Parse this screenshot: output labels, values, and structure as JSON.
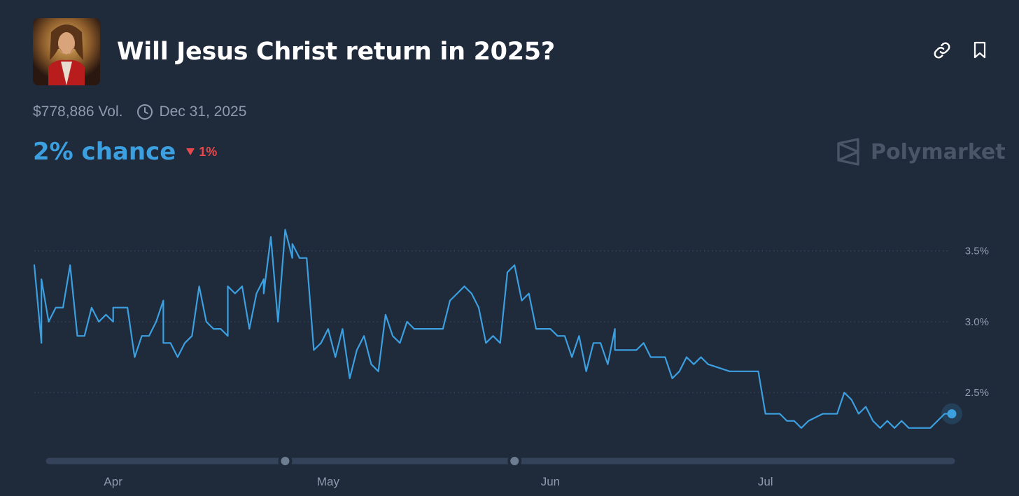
{
  "market": {
    "title": "Will Jesus Christ return in 2025?",
    "volume": "$778,886 Vol.",
    "end_date": "Dec 31, 2025",
    "chance_label": "2% chance",
    "change_label": "1%",
    "brand": "Polymarket"
  },
  "icons": {
    "link": "link-icon",
    "bookmark": "bookmark-icon",
    "clock": "clock-icon",
    "down": "triangle-down-icon",
    "logo": "polymarket-logo-icon"
  },
  "colors": {
    "background": "#1f2a3b",
    "line": "#3b9fe0",
    "chance": "#3b9fe0",
    "change_negative": "#e8494d",
    "muted": "#8e9cb0",
    "grid": "#3b4a5e"
  },
  "chart_data": {
    "type": "line",
    "x_start": "Mar 21",
    "x_end": "Jul 27",
    "xticks": [
      {
        "date": "Apr 1",
        "label": "Apr"
      },
      {
        "date": "May 1",
        "label": "May"
      },
      {
        "date": "Jun 1",
        "label": "Jun"
      },
      {
        "date": "Jul 1",
        "label": "Jul"
      }
    ],
    "yticks": [
      {
        "value": 2.5,
        "label": "2.5%"
      },
      {
        "value": 3.0,
        "label": "3.0%"
      },
      {
        "value": 3.5,
        "label": "3.5%"
      }
    ],
    "ylim": [
      2.15,
      3.8
    ],
    "grid": "horizontal dotted",
    "series": [
      {
        "points": [
          [
            "Mar 21",
            3.4
          ],
          [
            "Mar 22",
            2.85
          ],
          [
            "Mar 22",
            3.3
          ],
          [
            "Mar 23",
            3.0
          ],
          [
            "Mar 24",
            3.1
          ],
          [
            "Mar 25",
            3.1
          ],
          [
            "Mar 26",
            3.4
          ],
          [
            "Mar 27",
            2.9
          ],
          [
            "Mar 28",
            2.9
          ],
          [
            "Mar 29",
            3.1
          ],
          [
            "Mar 30",
            3.0
          ],
          [
            "Mar 31",
            3.05
          ],
          [
            "Apr 1",
            3.0
          ],
          [
            "Apr 1",
            3.1
          ],
          [
            "Apr 3",
            3.1
          ],
          [
            "Apr 4",
            2.75
          ],
          [
            "Apr 5",
            2.9
          ],
          [
            "Apr 6",
            2.9
          ],
          [
            "Apr 7",
            3.0
          ],
          [
            "Apr 8",
            3.15
          ],
          [
            "Apr 8",
            2.85
          ],
          [
            "Apr 9",
            2.85
          ],
          [
            "Apr 10",
            2.75
          ],
          [
            "Apr 11",
            2.85
          ],
          [
            "Apr 12",
            2.9
          ],
          [
            "Apr 13",
            3.25
          ],
          [
            "Apr 14",
            3.0
          ],
          [
            "Apr 15",
            2.95
          ],
          [
            "Apr 16",
            2.95
          ],
          [
            "Apr 17",
            2.9
          ],
          [
            "Apr 17",
            3.25
          ],
          [
            "Apr 18",
            3.2
          ],
          [
            "Apr 19",
            3.25
          ],
          [
            "Apr 20",
            2.95
          ],
          [
            "Apr 21",
            3.2
          ],
          [
            "Apr 22",
            3.3
          ],
          [
            "Apr 22",
            3.2
          ],
          [
            "Apr 23",
            3.6
          ],
          [
            "Apr 24",
            3.0
          ],
          [
            "Apr 25",
            3.65
          ],
          [
            "Apr 26",
            3.45
          ],
          [
            "Apr 26",
            3.55
          ],
          [
            "Apr 27",
            3.45
          ],
          [
            "Apr 28",
            3.45
          ],
          [
            "Apr 29",
            2.8
          ],
          [
            "Apr 30",
            2.85
          ],
          [
            "May 1",
            2.95
          ],
          [
            "May 2",
            2.75
          ],
          [
            "May 3",
            2.95
          ],
          [
            "May 4",
            2.6
          ],
          [
            "May 5",
            2.8
          ],
          [
            "May 6",
            2.9
          ],
          [
            "May 7",
            2.7
          ],
          [
            "May 8",
            2.65
          ],
          [
            "May 9",
            3.05
          ],
          [
            "May 10",
            2.9
          ],
          [
            "May 11",
            2.85
          ],
          [
            "May 12",
            3.0
          ],
          [
            "May 13",
            2.95
          ],
          [
            "May 17",
            2.95
          ],
          [
            "May 18",
            3.15
          ],
          [
            "May 19",
            3.2
          ],
          [
            "May 20",
            3.25
          ],
          [
            "May 21",
            3.2
          ],
          [
            "May 22",
            3.1
          ],
          [
            "May 23",
            2.85
          ],
          [
            "May 24",
            2.9
          ],
          [
            "May 25",
            2.85
          ],
          [
            "May 26",
            3.35
          ],
          [
            "May 27",
            3.4
          ],
          [
            "May 28",
            3.15
          ],
          [
            "May 29",
            3.2
          ],
          [
            "May 30",
            2.95
          ],
          [
            "Jun 1",
            2.95
          ],
          [
            "Jun 2",
            2.9
          ],
          [
            "Jun 3",
            2.9
          ],
          [
            "Jun 4",
            2.75
          ],
          [
            "Jun 5",
            2.9
          ],
          [
            "Jun 6",
            2.65
          ],
          [
            "Jun 7",
            2.85
          ],
          [
            "Jun 8",
            2.85
          ],
          [
            "Jun 9",
            2.7
          ],
          [
            "Jun 10",
            2.95
          ],
          [
            "Jun 10",
            2.8
          ],
          [
            "Jun 13",
            2.8
          ],
          [
            "Jun 14",
            2.85
          ],
          [
            "Jun 15",
            2.75
          ],
          [
            "Jun 17",
            2.75
          ],
          [
            "Jun 18",
            2.6
          ],
          [
            "Jun 19",
            2.65
          ],
          [
            "Jun 20",
            2.75
          ],
          [
            "Jun 21",
            2.7
          ],
          [
            "Jun 22",
            2.75
          ],
          [
            "Jun 23",
            2.7
          ],
          [
            "Jun 26",
            2.65
          ],
          [
            "Jun 30",
            2.65
          ],
          [
            "Jul 1",
            2.35
          ],
          [
            "Jul 3",
            2.35
          ],
          [
            "Jul 4",
            2.3
          ],
          [
            "Jul 5",
            2.3
          ],
          [
            "Jul 6",
            2.25
          ],
          [
            "Jul 7",
            2.3
          ],
          [
            "Jul 9",
            2.35
          ],
          [
            "Jul 11",
            2.35
          ],
          [
            "Jul 12",
            2.5
          ],
          [
            "Jul 13",
            2.45
          ],
          [
            "Jul 14",
            2.35
          ],
          [
            "Jul 15",
            2.4
          ],
          [
            "Jul 16",
            2.3
          ],
          [
            "Jul 17",
            2.25
          ],
          [
            "Jul 18",
            2.3
          ],
          [
            "Jul 19",
            2.25
          ],
          [
            "Jul 20",
            2.3
          ],
          [
            "Jul 21",
            2.25
          ],
          [
            "Jul 24",
            2.25
          ],
          [
            "Jul 25",
            2.3
          ],
          [
            "Jul 26",
            2.35
          ],
          [
            "Jul 27",
            2.35
          ]
        ]
      }
    ],
    "last_point": [
      "Jul 27",
      2.35
    ],
    "range_handles": [
      "Apr 25",
      "May 27"
    ]
  }
}
